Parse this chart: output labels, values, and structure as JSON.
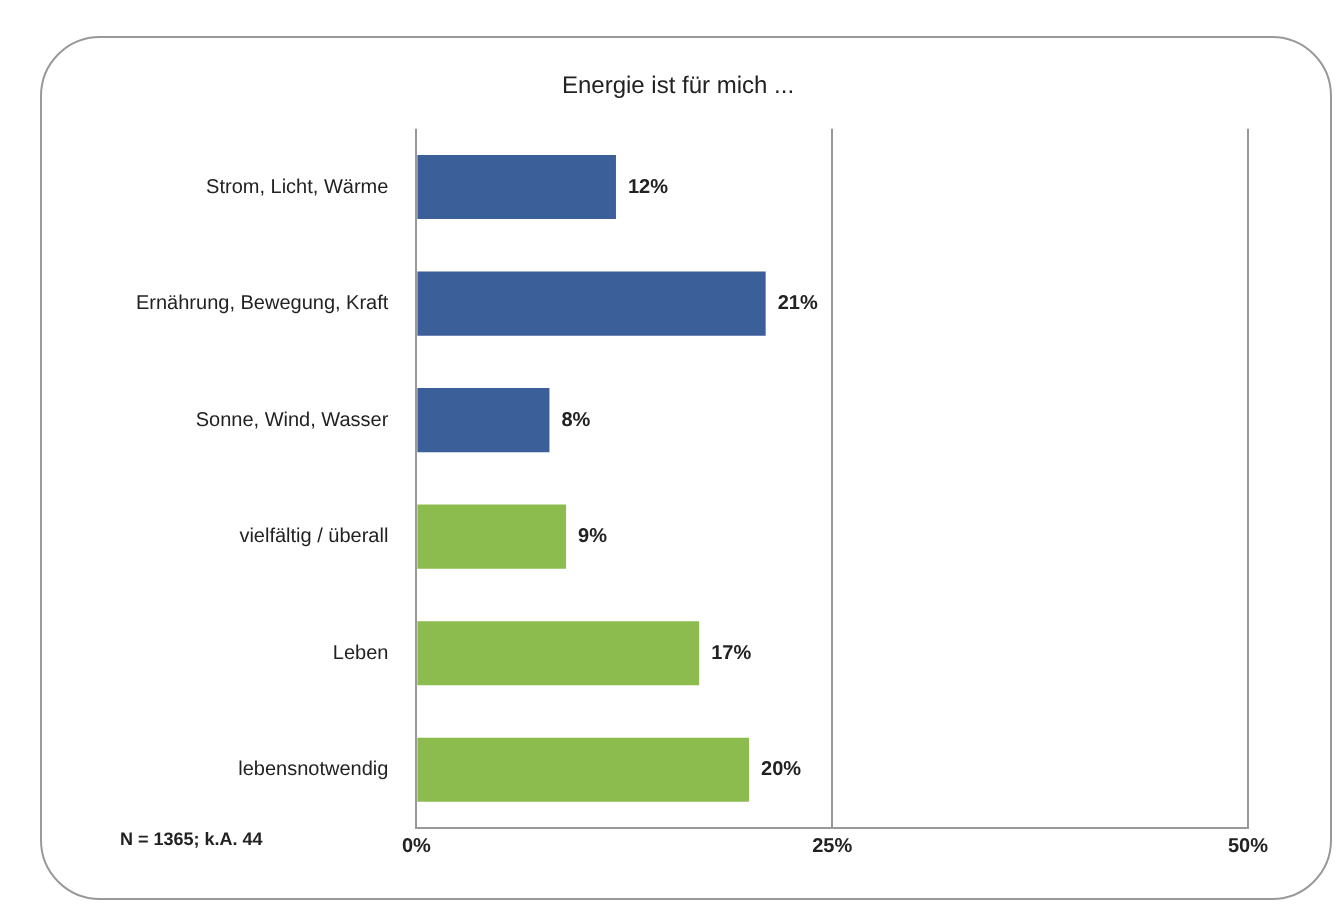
{
  "chart_data": {
    "type": "bar",
    "orientation": "horizontal",
    "title": "Energie ist für mich ...",
    "categories": [
      "Strom, Licht, Wärme",
      "Ernährung, Bewegung, Kraft",
      "Sonne, Wind, Wasser",
      "vielfältig / überall",
      "Leben",
      "lebensnotwendig"
    ],
    "values": [
      12,
      21,
      8,
      9,
      17,
      20
    ],
    "colors": [
      "#3b5f98",
      "#3b5f98",
      "#3b5f98",
      "#8cbb4e",
      "#8cbb4e",
      "#8cbb4e"
    ],
    "value_labels": [
      "12%",
      "21%",
      "8%",
      "9%",
      "17%",
      "20%"
    ],
    "xlim": [
      0,
      50
    ],
    "xticks": [
      {
        "value": 0,
        "label": "0%"
      },
      {
        "value": 25,
        "label": "25%"
      },
      {
        "value": 50,
        "label": "50%"
      }
    ],
    "grid": "x",
    "legend": false,
    "annotations": [
      "N = 1365; k.A. 44"
    ]
  }
}
